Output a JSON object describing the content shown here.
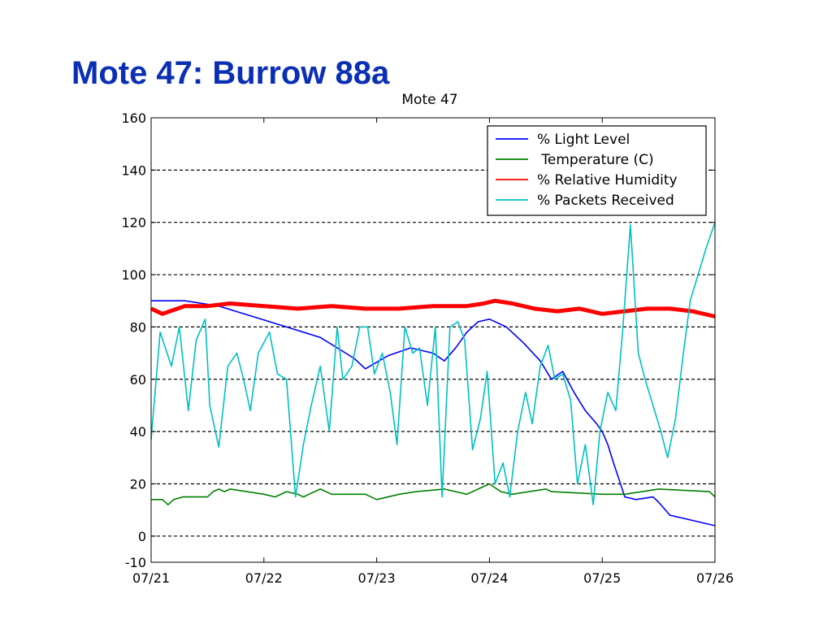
{
  "slide": {
    "title": "Mote 47: Burrow 88a"
  },
  "colors": {
    "title": "#0a2fb4",
    "light": "#0000ff",
    "temperature": "#008000",
    "humidity": "#ff0000",
    "packets": "#00c0c0"
  },
  "chart_data": {
    "type": "line",
    "title": "Mote 47",
    "xlabel": "",
    "ylabel": "",
    "x_ticks": [
      "07/21",
      "07/22",
      "07/23",
      "07/24",
      "07/25",
      "07/26"
    ],
    "y_ticks": [
      -10,
      0,
      20,
      40,
      60,
      80,
      100,
      120,
      140,
      160
    ],
    "xlim": [
      0,
      5
    ],
    "ylim": [
      -10,
      160
    ],
    "grid": "horizontal dashed",
    "legend_position": "top-right",
    "series": [
      {
        "name": "% Light Level",
        "color": "#0000ff",
        "x": [
          0,
          0.3,
          0.6,
          0.9,
          1.2,
          1.5,
          1.8,
          1.9,
          2.1,
          2.3,
          2.5,
          2.6,
          2.7,
          2.8,
          2.9,
          3.0,
          3.15,
          3.3,
          3.45,
          3.55,
          3.65,
          3.75,
          3.85,
          3.95,
          4.0,
          4.05,
          4.1,
          4.2,
          4.3,
          4.45,
          4.5,
          4.6,
          4.8,
          5.0
        ],
        "values": [
          90,
          90,
          88,
          84,
          80,
          76,
          68,
          64,
          69,
          72,
          70,
          67,
          72,
          78,
          82,
          83,
          80,
          74,
          67,
          60,
          63,
          55,
          48,
          43,
          40,
          35,
          28,
          15,
          14,
          15,
          13,
          8,
          6,
          4
        ]
      },
      {
        "name": " Temperature (C)",
        "color": "#008000",
        "x": [
          0,
          0.1,
          0.15,
          0.2,
          0.28,
          0.5,
          0.55,
          0.6,
          0.65,
          0.7,
          1.0,
          1.1,
          1.2,
          1.3,
          1.35,
          1.4,
          1.5,
          1.6,
          1.9,
          2.0,
          2.2,
          2.35,
          2.6,
          2.8,
          2.9,
          3.0,
          3.1,
          3.2,
          3.5,
          3.55,
          4.0,
          4.2,
          4.5,
          4.95,
          5.0
        ],
        "values": [
          14,
          14,
          12,
          14,
          15,
          15,
          17,
          18,
          17,
          18,
          16,
          15,
          17,
          16,
          15,
          16,
          18,
          16,
          16,
          14,
          16,
          17,
          18,
          16,
          18,
          20,
          17,
          16,
          18,
          17,
          16,
          16,
          18,
          17,
          15
        ]
      },
      {
        "name": "% Relative Humidity",
        "color": "#ff0000",
        "x": [
          0,
          0.1,
          0.3,
          0.5,
          0.7,
          1.0,
          1.3,
          1.6,
          1.9,
          2.0,
          2.2,
          2.5,
          2.8,
          2.95,
          3.05,
          3.2,
          3.4,
          3.6,
          3.8,
          4.0,
          4.2,
          4.4,
          4.6,
          4.8,
          5.0
        ],
        "values": [
          87,
          85,
          88,
          88,
          89,
          88,
          87,
          88,
          87,
          87,
          87,
          88,
          88,
          89,
          90,
          89,
          87,
          86,
          87,
          85,
          86,
          87,
          87,
          86,
          84
        ]
      },
      {
        "name": "% Packets Received",
        "color": "#00c0c0",
        "x": [
          0,
          0.08,
          0.18,
          0.25,
          0.33,
          0.4,
          0.48,
          0.52,
          0.6,
          0.68,
          0.76,
          0.82,
          0.88,
          0.95,
          1.05,
          1.12,
          1.2,
          1.28,
          1.35,
          1.42,
          1.5,
          1.58,
          1.65,
          1.7,
          1.78,
          1.85,
          1.92,
          1.98,
          2.05,
          2.12,
          2.18,
          2.25,
          2.32,
          2.38,
          2.45,
          2.52,
          2.58,
          2.65,
          2.72,
          2.78,
          2.85,
          2.92,
          2.98,
          3.05,
          3.12,
          3.18,
          3.25,
          3.32,
          3.38,
          3.45,
          3.52,
          3.58,
          3.65,
          3.72,
          3.78,
          3.85,
          3.92,
          3.98,
          4.05,
          4.12,
          4.18,
          4.25,
          4.32,
          4.38,
          4.45,
          4.52,
          4.58,
          4.65,
          4.72,
          4.78,
          4.85,
          4.92,
          5.0
        ],
        "values": [
          37,
          78,
          65,
          80,
          48,
          75,
          83,
          50,
          34,
          65,
          70,
          60,
          48,
          70,
          78,
          62,
          60,
          15,
          35,
          50,
          65,
          40,
          80,
          60,
          65,
          80,
          80,
          62,
          70,
          55,
          35,
          80,
          70,
          72,
          50,
          80,
          15,
          80,
          82,
          75,
          33,
          45,
          63,
          20,
          28,
          15,
          40,
          55,
          43,
          65,
          73,
          60,
          62,
          52,
          20,
          35,
          12,
          40,
          55,
          48,
          78,
          119,
          70,
          60,
          50,
          40,
          30,
          45,
          70,
          90,
          100,
          110,
          120
        ]
      }
    ]
  }
}
